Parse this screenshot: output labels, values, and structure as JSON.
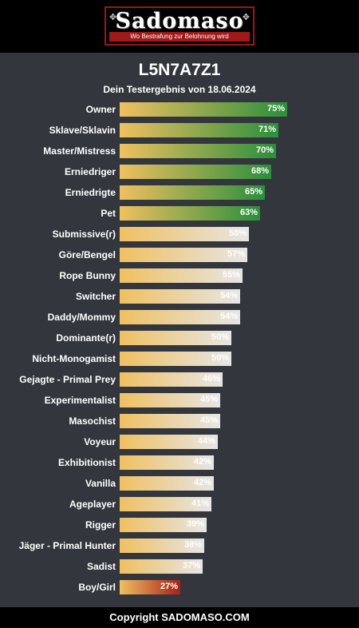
{
  "header": {
    "logo_text": "Sadomaso",
    "logo_tagline": "Wo Bestrafung zur Belohnung wird",
    "colors": {
      "logo_border": "#9c1616",
      "tagline_bg": "#a01818"
    }
  },
  "result": {
    "code": "L5N7A7Z1",
    "subtitle": "Dein Testergebnis von 18.06.2024"
  },
  "colors": {
    "bar_start": "#f0c060",
    "bar_high": "#2a8f3c",
    "bar_mid": "#e6e6e6",
    "bar_low": "#a82018"
  },
  "chart_data": {
    "type": "bar",
    "orientation": "horizontal",
    "xlim": [
      0,
      100
    ],
    "categories": [
      "Owner",
      "Sklave/Sklavin",
      "Master/Mistress",
      "Erniedriger",
      "Erniedrigte",
      "Pet",
      "Submissive(r)",
      "Göre/Bengel",
      "Rope Bunny",
      "Switcher",
      "Daddy/Mommy",
      "Dominante(r)",
      "Nicht-Monogamist",
      "Gejagte - Primal Prey",
      "Experimentalist",
      "Masochist",
      "Voyeur",
      "Exhibitionist",
      "Vanilla",
      "Ageplayer",
      "Rigger",
      "Jäger - Primal Hunter",
      "Sadist",
      "Boy/Girl"
    ],
    "values": [
      75,
      71,
      70,
      68,
      65,
      63,
      58,
      57,
      55,
      54,
      54,
      50,
      50,
      46,
      45,
      45,
      44,
      42,
      42,
      41,
      39,
      38,
      37,
      27
    ],
    "labels": [
      "75%",
      "71%",
      "70%",
      "68%",
      "65%",
      "63%",
      "58%",
      "57%",
      "55%",
      "54%",
      "54%",
      "50%",
      "50%",
      "46%",
      "45%",
      "45%",
      "44%",
      "42%",
      "42%",
      "41%",
      "39%",
      "38%",
      "37%",
      "27%"
    ],
    "levels": [
      "high",
      "high",
      "high",
      "high",
      "high",
      "high",
      "mid",
      "mid",
      "mid",
      "mid",
      "mid",
      "mid",
      "mid",
      "mid",
      "mid",
      "mid",
      "mid",
      "mid",
      "mid",
      "mid",
      "mid",
      "mid",
      "mid",
      "low"
    ]
  },
  "footer": {
    "text": "Copyright SADOMASO.COM"
  }
}
